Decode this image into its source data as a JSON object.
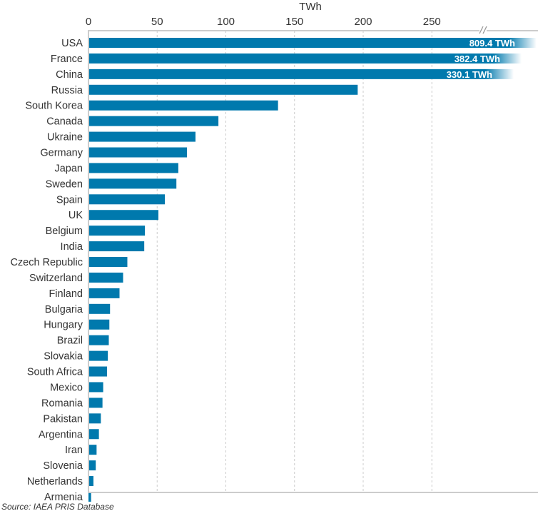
{
  "chart_data": {
    "type": "bar",
    "orientation": "horizontal",
    "xlabel": "TWh",
    "xlim": [
      0,
      290
    ],
    "xticks": [
      0,
      50,
      100,
      150,
      200,
      250
    ],
    "axis_break": true,
    "grid": "vertical dashed",
    "bar_color": "#0079ad",
    "categories": [
      "USA",
      "France",
      "China",
      "Russia",
      "South Korea",
      "Canada",
      "Ukraine",
      "Germany",
      "Japan",
      "Sweden",
      "Spain",
      "UK",
      "Belgium",
      "India",
      "Czech Republic",
      "Switzerland",
      "Finland",
      "Bulgaria",
      "Hungary",
      "Brazil",
      "Slovakia",
      "South Africa",
      "Mexico",
      "Romania",
      "Pakistan",
      "Argentina",
      "Iran",
      "Slovenia",
      "Netherlands",
      "Armenia"
    ],
    "values": [
      809.4,
      382.4,
      330.1,
      196,
      138,
      94.6,
      77.9,
      71.7,
      65.4,
      64,
      55.6,
      50.9,
      41.1,
      40.6,
      28.3,
      25.2,
      22.6,
      15.7,
      15.2,
      14.8,
      14.1,
      13.5,
      10.7,
      10.2,
      9.0,
      7.6,
      5.9,
      5.3,
      3.6,
      1.9
    ],
    "data_labels": {
      "USA": "809.4 TWh",
      "France": "382.4 TWh",
      "China": "330.1 TWh"
    },
    "source": "Source: IAEA PRIS Database"
  }
}
